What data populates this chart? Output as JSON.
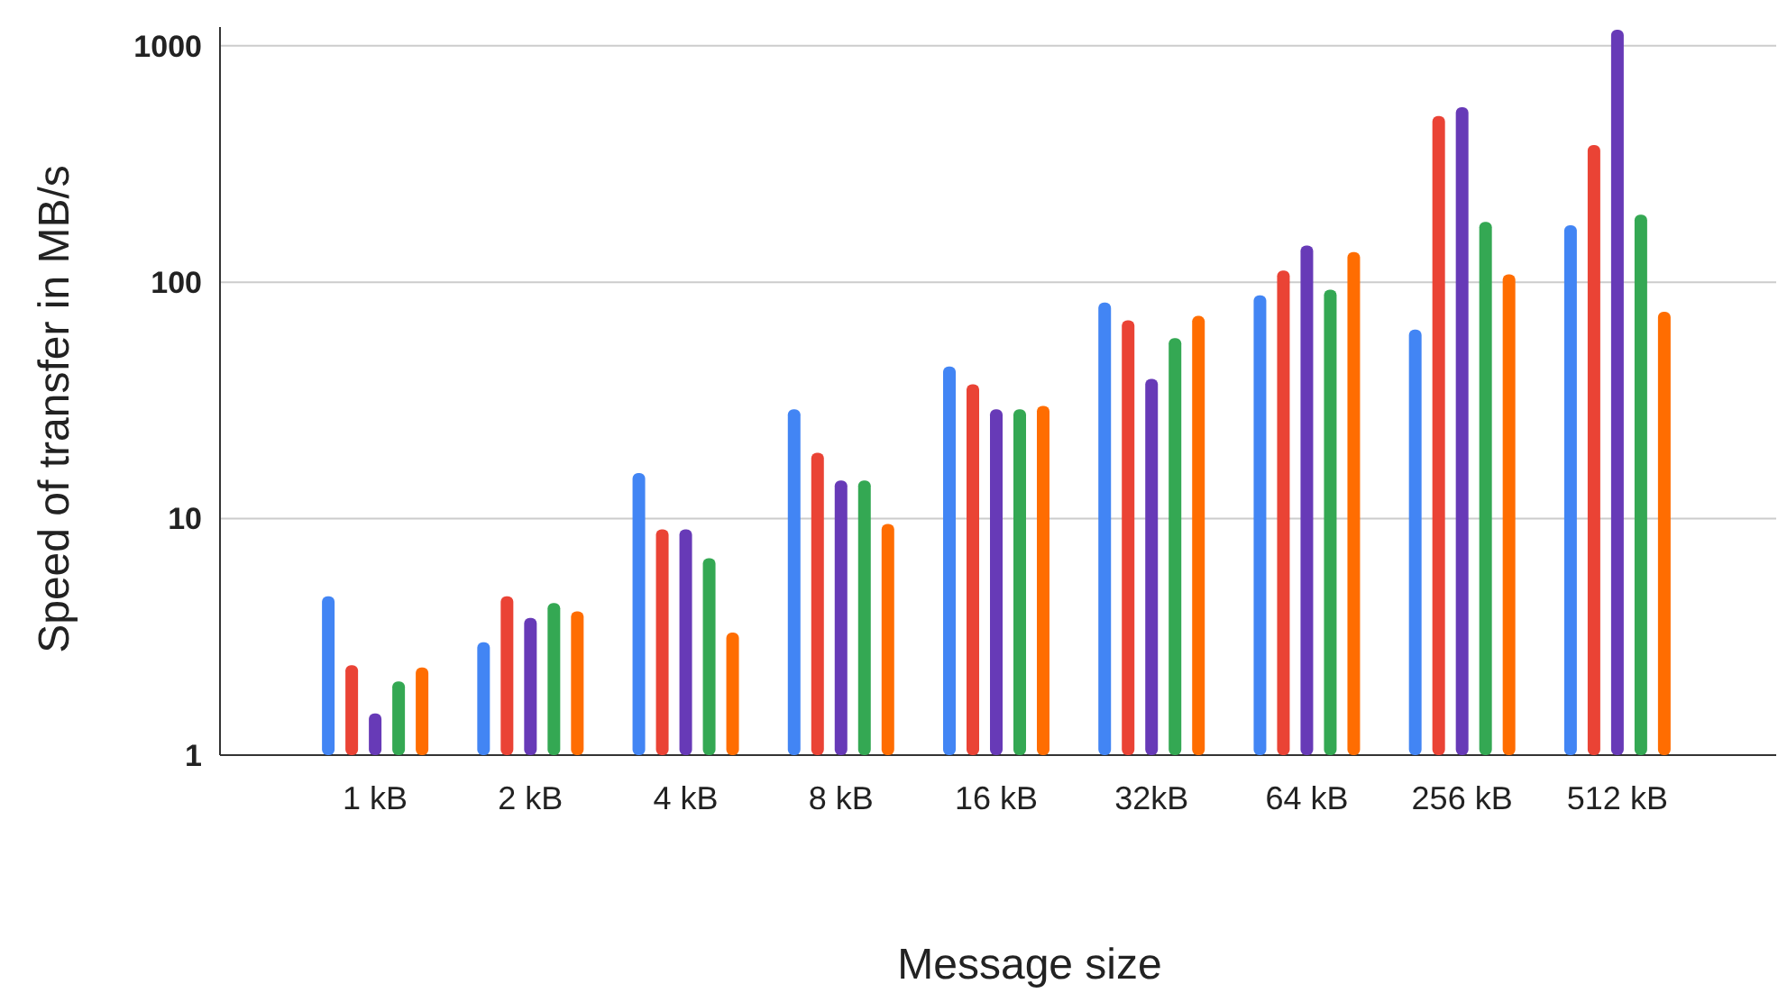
{
  "chart_data": {
    "type": "bar",
    "xlabel": "Message size",
    "ylabel": "Speed of transfer in MB/s",
    "log": "y",
    "grid": "y",
    "ylim": [
      1,
      1200
    ],
    "yticks": [
      1,
      10,
      100,
      1000
    ],
    "categories": [
      "1 kB",
      "2 kB",
      "4 kB",
      "8 kB",
      "16 kB",
      "32kB",
      "64 kB",
      "256 kB",
      "512 kB"
    ],
    "series": [
      {
        "color": "#4285f4",
        "values": [
          4.7,
          3,
          15.6,
          29,
          44,
          82,
          88,
          63,
          174
        ]
      },
      {
        "color": "#ea4335",
        "values": [
          2.4,
          4.7,
          9,
          19,
          37,
          69,
          112,
          505,
          380
        ]
      },
      {
        "color": "#673ab7",
        "values": [
          1.5,
          3.8,
          9,
          14.5,
          29,
          39,
          143,
          550,
          1170
        ]
      },
      {
        "color": "#34a853",
        "values": [
          2.05,
          4.4,
          6.8,
          14.5,
          29,
          58,
          93,
          180,
          193
        ]
      },
      {
        "color": "#ff6d01",
        "values": [
          2.35,
          4.05,
          3.3,
          9.5,
          30,
          72,
          134,
          108,
          75
        ]
      }
    ]
  }
}
